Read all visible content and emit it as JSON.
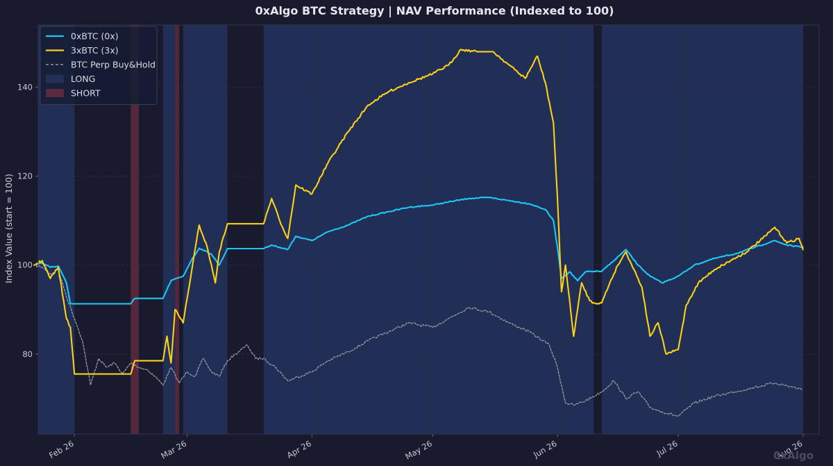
{
  "chart_data": {
    "type": "line",
    "title": "0xAlgo BTC Strategy | NAV Performance (Indexed to 100)",
    "ylabel": "Index Value (start = 100)",
    "xlabel": "",
    "x_range": [
      "2026-01-23",
      "2026-08-05"
    ],
    "ylim": [
      62,
      154
    ],
    "y_ticks": [
      80,
      100,
      120,
      140
    ],
    "x_ticks": [
      {
        "date": "2026-02-01",
        "label": "Feb 26"
      },
      {
        "date": "2026-03-01",
        "label": "Mar 26"
      },
      {
        "date": "2026-04-01",
        "label": "Apr 26"
      },
      {
        "date": "2026-05-01",
        "label": "May 26"
      },
      {
        "date": "2026-06-01",
        "label": "Jun 26"
      },
      {
        "date": "2026-07-01",
        "label": "Jul 26"
      },
      {
        "date": "2026-08-01",
        "label": "Aug 26"
      }
    ],
    "grid": true,
    "legend_position": "top-left",
    "colors": {
      "background": "#191a2d",
      "long_region": "#223058",
      "short_region": "#5a2a3e",
      "grid": "#2b2c44"
    },
    "regions": [
      {
        "type": "LONG",
        "start": "2026-01-23",
        "end": "2026-02-01"
      },
      {
        "type": "SHORT",
        "start": "2026-02-15",
        "end": "2026-02-17"
      },
      {
        "type": "LONG",
        "start": "2026-02-23",
        "end": "2026-02-26"
      },
      {
        "type": "SHORT",
        "start": "2026-02-26",
        "end": "2026-02-27"
      },
      {
        "type": "LONG",
        "start": "2026-02-28",
        "end": "2026-03-11"
      },
      {
        "type": "LONG",
        "start": "2026-03-20",
        "end": "2026-06-10"
      },
      {
        "type": "LONG",
        "start": "2026-06-12",
        "end": "2026-08-01"
      }
    ],
    "series": [
      {
        "name": "0xBTC (0x)",
        "color": "#1ec8f5",
        "style": "solid",
        "points": [
          [
            "2026-01-22",
            100
          ],
          [
            "2026-01-24",
            100.5
          ],
          [
            "2026-01-26",
            99.5
          ],
          [
            "2026-01-28",
            99.8
          ],
          [
            "2026-01-30",
            96
          ],
          [
            "2026-01-31",
            91.3
          ],
          [
            "2026-02-15",
            91.3
          ],
          [
            "2026-02-16",
            92.5
          ],
          [
            "2026-02-23",
            92.5
          ],
          [
            "2026-02-25",
            96.5
          ],
          [
            "2026-02-28",
            97.5
          ],
          [
            "2026-03-02",
            101
          ],
          [
            "2026-03-04",
            103.8
          ],
          [
            "2026-03-07",
            102.5
          ],
          [
            "2026-03-09",
            100
          ],
          [
            "2026-03-11",
            103.7
          ],
          [
            "2026-03-20",
            103.7
          ],
          [
            "2026-03-22",
            104.5
          ],
          [
            "2026-03-24",
            104
          ],
          [
            "2026-03-26",
            103.5
          ],
          [
            "2026-03-28",
            106.5
          ],
          [
            "2026-04-01",
            105.5
          ],
          [
            "2026-04-05",
            107.5
          ],
          [
            "2026-04-10",
            109
          ],
          [
            "2026-04-15",
            111
          ],
          [
            "2026-04-20",
            112
          ],
          [
            "2026-04-25",
            113
          ],
          [
            "2026-05-01",
            113.5
          ],
          [
            "2026-05-05",
            114.2
          ],
          [
            "2026-05-10",
            115
          ],
          [
            "2026-05-15",
            115.2
          ],
          [
            "2026-05-20",
            114.5
          ],
          [
            "2026-05-25",
            113.8
          ],
          [
            "2026-05-29",
            112.5
          ],
          [
            "2026-05-31",
            110
          ],
          [
            "2026-06-01",
            104
          ],
          [
            "2026-06-02",
            97
          ],
          [
            "2026-06-04",
            98.5
          ],
          [
            "2026-06-06",
            96.5
          ],
          [
            "2026-06-08",
            98.5
          ],
          [
            "2026-06-10",
            98.6
          ],
          [
            "2026-06-12",
            98.6
          ],
          [
            "2026-06-15",
            101
          ],
          [
            "2026-06-18",
            103.5
          ],
          [
            "2026-06-21",
            100
          ],
          [
            "2026-06-24",
            97.5
          ],
          [
            "2026-06-27",
            96
          ],
          [
            "2026-07-01",
            97.5
          ],
          [
            "2026-07-05",
            100
          ],
          [
            "2026-07-10",
            101.5
          ],
          [
            "2026-07-15",
            102.5
          ],
          [
            "2026-07-20",
            104
          ],
          [
            "2026-07-25",
            105.5
          ],
          [
            "2026-07-28",
            104.5
          ],
          [
            "2026-08-01",
            104
          ]
        ]
      },
      {
        "name": "3xBTC (3x)",
        "color": "#fcd116",
        "style": "solid",
        "points": [
          [
            "2026-01-22",
            100
          ],
          [
            "2026-01-24",
            101
          ],
          [
            "2026-01-26",
            97
          ],
          [
            "2026-01-28",
            99.5
          ],
          [
            "2026-01-30",
            88
          ],
          [
            "2026-01-31",
            86
          ],
          [
            "2026-02-01",
            75.5
          ],
          [
            "2026-02-15",
            75.5
          ],
          [
            "2026-02-16",
            78.5
          ],
          [
            "2026-02-23",
            78.5
          ],
          [
            "2026-02-24",
            84
          ],
          [
            "2026-02-25",
            78
          ],
          [
            "2026-02-26",
            90
          ],
          [
            "2026-02-28",
            87
          ],
          [
            "2026-03-02",
            98
          ],
          [
            "2026-03-04",
            109
          ],
          [
            "2026-03-06",
            104
          ],
          [
            "2026-03-08",
            96
          ],
          [
            "2026-03-09",
            103
          ],
          [
            "2026-03-11",
            109.3
          ],
          [
            "2026-03-20",
            109.3
          ],
          [
            "2026-03-22",
            115
          ],
          [
            "2026-03-24",
            110
          ],
          [
            "2026-03-26",
            106
          ],
          [
            "2026-03-28",
            118
          ],
          [
            "2026-04-01",
            116
          ],
          [
            "2026-04-05",
            123
          ],
          [
            "2026-04-10",
            130
          ],
          [
            "2026-04-15",
            136
          ],
          [
            "2026-04-20",
            139
          ],
          [
            "2026-04-25",
            141
          ],
          [
            "2026-05-01",
            143
          ],
          [
            "2026-05-05",
            145
          ],
          [
            "2026-05-08",
            148.5
          ],
          [
            "2026-05-12",
            148
          ],
          [
            "2026-05-16",
            148
          ],
          [
            "2026-05-20",
            145
          ],
          [
            "2026-05-24",
            142
          ],
          [
            "2026-05-27",
            147
          ],
          [
            "2026-05-29",
            141
          ],
          [
            "2026-05-31",
            132
          ],
          [
            "2026-06-01",
            115
          ],
          [
            "2026-06-02",
            94
          ],
          [
            "2026-06-03",
            100
          ],
          [
            "2026-06-05",
            84
          ],
          [
            "2026-06-07",
            96
          ],
          [
            "2026-06-09",
            92
          ],
          [
            "2026-06-10",
            91.5
          ],
          [
            "2026-06-12",
            91.5
          ],
          [
            "2026-06-14",
            96
          ],
          [
            "2026-06-16",
            100
          ],
          [
            "2026-06-18",
            103
          ],
          [
            "2026-06-20",
            99
          ],
          [
            "2026-06-22",
            95
          ],
          [
            "2026-06-24",
            84
          ],
          [
            "2026-06-26",
            87
          ],
          [
            "2026-06-28",
            80
          ],
          [
            "2026-07-01",
            81
          ],
          [
            "2026-07-03",
            91
          ],
          [
            "2026-07-06",
            96
          ],
          [
            "2026-07-10",
            99
          ],
          [
            "2026-07-14",
            101
          ],
          [
            "2026-07-18",
            103
          ],
          [
            "2026-07-22",
            106
          ],
          [
            "2026-07-25",
            108.5
          ],
          [
            "2026-07-28",
            105
          ],
          [
            "2026-07-31",
            106
          ],
          [
            "2026-08-01",
            103.5
          ]
        ]
      },
      {
        "name": "BTC Perp Buy&Hold",
        "color": "#9a9aa4",
        "style": "dashed",
        "points": [
          [
            "2026-01-22",
            100
          ],
          [
            "2026-01-24",
            99.5
          ],
          [
            "2026-01-26",
            98
          ],
          [
            "2026-01-28",
            99
          ],
          [
            "2026-01-30",
            93
          ],
          [
            "2026-02-01",
            88
          ],
          [
            "2026-02-03",
            83
          ],
          [
            "2026-02-05",
            73
          ],
          [
            "2026-02-07",
            79
          ],
          [
            "2026-02-09",
            77
          ],
          [
            "2026-02-11",
            78
          ],
          [
            "2026-02-13",
            75.5
          ],
          [
            "2026-02-15",
            78
          ],
          [
            "2026-02-17",
            77
          ],
          [
            "2026-02-19",
            76.5
          ],
          [
            "2026-02-21",
            75
          ],
          [
            "2026-02-23",
            73
          ],
          [
            "2026-02-25",
            77
          ],
          [
            "2026-02-27",
            73.5
          ],
          [
            "2026-03-01",
            76
          ],
          [
            "2026-03-03",
            75
          ],
          [
            "2026-03-05",
            79
          ],
          [
            "2026-03-07",
            76
          ],
          [
            "2026-03-09",
            75
          ],
          [
            "2026-03-11",
            78.5
          ],
          [
            "2026-03-13",
            80
          ],
          [
            "2026-03-16",
            82
          ],
          [
            "2026-03-18",
            79
          ],
          [
            "2026-03-20",
            79
          ],
          [
            "2026-03-23",
            77
          ],
          [
            "2026-03-26",
            74
          ],
          [
            "2026-04-01",
            76
          ],
          [
            "2026-04-05",
            78.5
          ],
          [
            "2026-04-10",
            80.5
          ],
          [
            "2026-04-15",
            83
          ],
          [
            "2026-04-20",
            85
          ],
          [
            "2026-04-25",
            87
          ],
          [
            "2026-05-01",
            86
          ],
          [
            "2026-05-05",
            88
          ],
          [
            "2026-05-10",
            90.5
          ],
          [
            "2026-05-15",
            89.5
          ],
          [
            "2026-05-20",
            87
          ],
          [
            "2026-05-25",
            85
          ],
          [
            "2026-05-30",
            82
          ],
          [
            "2026-06-01",
            77
          ],
          [
            "2026-06-03",
            69
          ],
          [
            "2026-06-05",
            68.5
          ],
          [
            "2026-06-08",
            69.5
          ],
          [
            "2026-06-12",
            71.5
          ],
          [
            "2026-06-15",
            74
          ],
          [
            "2026-06-18",
            70
          ],
          [
            "2026-06-21",
            71.5
          ],
          [
            "2026-06-24",
            68
          ],
          [
            "2026-06-27",
            67
          ],
          [
            "2026-07-01",
            66
          ],
          [
            "2026-07-05",
            69
          ],
          [
            "2026-07-10",
            70.5
          ],
          [
            "2026-07-15",
            71.5
          ],
          [
            "2026-07-20",
            72.5
          ],
          [
            "2026-07-25",
            73.5
          ],
          [
            "2026-08-01",
            72
          ]
        ]
      }
    ],
    "legend": [
      {
        "label": "0xBTC (0x)",
        "kind": "line",
        "color": "#1ec8f5"
      },
      {
        "label": "3xBTC (3x)",
        "kind": "line",
        "color": "#fcd116"
      },
      {
        "label": "BTC Perp Buy&Hold",
        "kind": "dashed",
        "color": "#9a9aa4"
      },
      {
        "label": "LONG",
        "kind": "patch",
        "color": "#223058"
      },
      {
        "label": "SHORT",
        "kind": "patch",
        "color": "#5a2a3e"
      }
    ],
    "watermark": "0xAlgo"
  }
}
